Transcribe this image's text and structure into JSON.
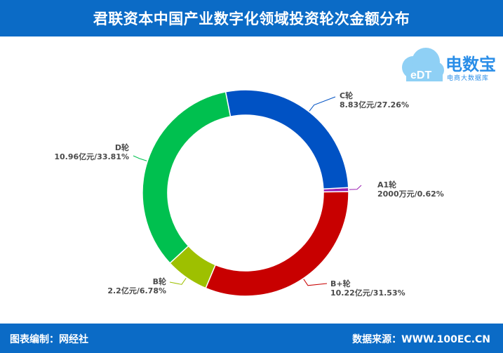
{
  "header": {
    "title": "君联资本中国产业数字化领域投资轮次金额分布"
  },
  "logo": {
    "brand": "电数宝",
    "sub": "电商大数据库",
    "badge": "eDT"
  },
  "footer": {
    "editor": "图表编制：网经社",
    "source": "数据来源：WWW.100EC.CN"
  },
  "chart_data": {
    "type": "pie",
    "title": "君联资本中国产业数字化领域投资轮次金额分布",
    "donut": true,
    "slices": [
      {
        "name": "A1轮",
        "value_text": "2000万元",
        "percent": 0.62,
        "color": "#9b1fb2"
      },
      {
        "name": "B+轮",
        "value_text": "10.22亿元",
        "percent": 31.53,
        "color": "#c80000"
      },
      {
        "name": "B轮",
        "value_text": "2.2亿元",
        "percent": 6.78,
        "color": "#9ec000"
      },
      {
        "name": "D轮",
        "value_text": "10.96亿元",
        "percent": 33.81,
        "color": "#00c04f"
      },
      {
        "name": "C轮",
        "value_text": "8.83亿元",
        "percent": 27.26,
        "color": "#0052c4"
      }
    ]
  }
}
